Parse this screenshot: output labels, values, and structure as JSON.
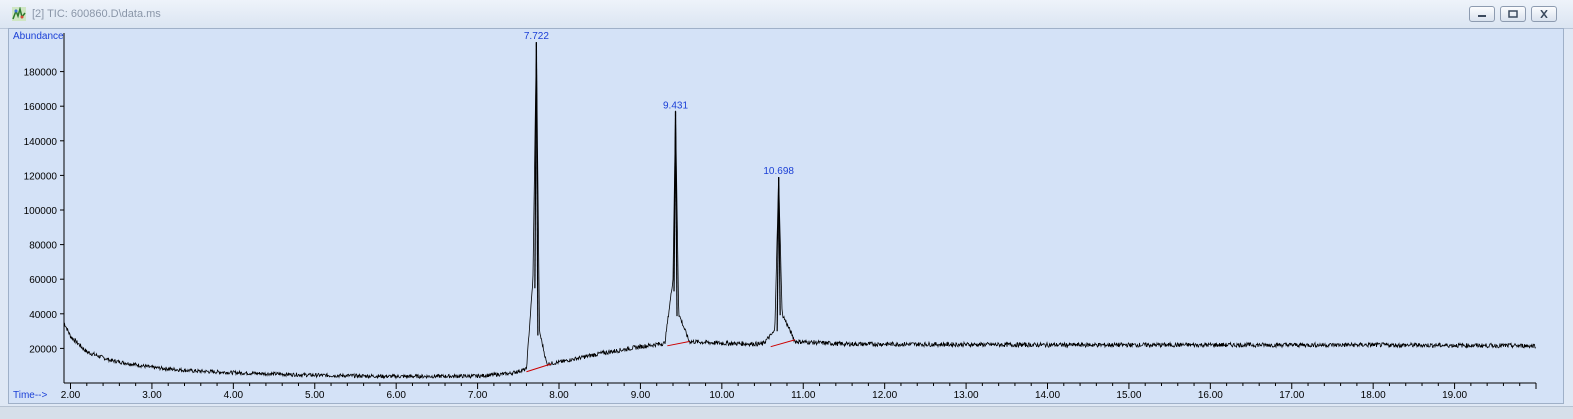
{
  "window": {
    "title": "[2] TIC: 600860.D\\data.ms",
    "icon": "chromatogram-app-icon",
    "controls": [
      "minimize-icon",
      "restore-icon",
      "close-icon"
    ]
  },
  "chart_data": {
    "type": "line",
    "ylabel": "Abundance",
    "xlabel": "Time-->",
    "xlim": [
      1.92,
      20.0
    ],
    "ylim": [
      0,
      200000
    ],
    "x_ticks": [
      "2.00",
      "3.00",
      "4.00",
      "5.00",
      "6.00",
      "7.00",
      "8.00",
      "9.00",
      "10.00",
      "11.00",
      "12.00",
      "13.00",
      "14.00",
      "15.00",
      "16.00",
      "17.00",
      "18.00",
      "19.00"
    ],
    "y_ticks": [
      "20000",
      "40000",
      "60000",
      "80000",
      "100000",
      "120000",
      "140000",
      "160000",
      "180000"
    ],
    "series": [
      {
        "color": "#000000",
        "x": [
          1.92,
          2.0,
          2.2,
          2.5,
          3.0,
          3.5,
          4.0,
          5.0,
          6.0,
          7.0,
          7.4,
          7.6,
          7.68,
          7.722,
          7.76,
          7.85,
          8.0,
          8.5,
          9.0,
          9.3,
          9.4,
          9.431,
          9.47,
          9.6,
          10.0,
          10.5,
          10.65,
          10.698,
          10.74,
          10.9,
          11.5,
          12.0,
          14.0,
          16.0,
          18.0,
          20.0
        ],
        "y": [
          35000,
          27000,
          18000,
          13000,
          9000,
          7000,
          6000,
          4500,
          3800,
          4000,
          5500,
          8000,
          60000,
          197000,
          30000,
          11000,
          12000,
          17000,
          21000,
          23000,
          60000,
          157000,
          40000,
          24000,
          23000,
          22500,
          30000,
          119000,
          40000,
          24000,
          22500,
          22500,
          22000,
          22000,
          22000,
          21500
        ]
      }
    ],
    "peaks": [
      {
        "rt": "7.722",
        "x": 7.722,
        "y": 197000
      },
      {
        "rt": "9.431",
        "x": 9.431,
        "y": 157000
      },
      {
        "rt": "10.698",
        "x": 10.698,
        "y": 119000
      }
    ],
    "baselines": [
      {
        "color": "#cc0000",
        "x": [
          7.6,
          7.9
        ],
        "y": [
          6500,
          11000
        ]
      },
      {
        "color": "#cc0000",
        "x": [
          9.33,
          9.6
        ],
        "y": [
          21500,
          24000
        ]
      },
      {
        "color": "#cc0000",
        "x": [
          10.6,
          10.9
        ],
        "y": [
          21000,
          25000
        ]
      }
    ]
  }
}
